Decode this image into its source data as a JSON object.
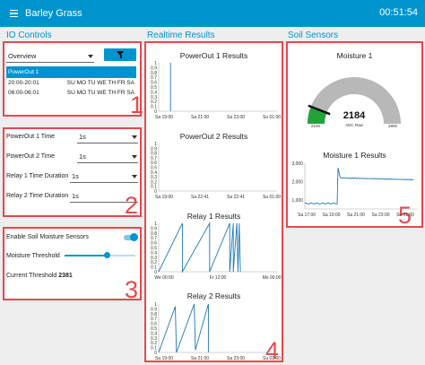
{
  "header": {
    "title": "Barley Grass",
    "clock": "00:51:54"
  },
  "groups": {
    "io": "IO Controls",
    "realtime": "Realtime Results",
    "soil": "Soil Sensors"
  },
  "io": {
    "view_select": "Overview",
    "schedules": [
      {
        "label": "PowerOut 1",
        "days": ""
      },
      {
        "label": "20:00-20:01",
        "days": "SU MO TU WE TH FR SA"
      },
      {
        "label": "06:00-06:01",
        "days": "SU MO TU WE TH FR SA"
      }
    ],
    "times": [
      {
        "label": "PowerOut 1 Time",
        "value": "1s"
      },
      {
        "label": "PowerOut 2 Time",
        "value": "1s"
      },
      {
        "label": "Relay 1 Time Duration",
        "value": "1s"
      },
      {
        "label": "Relay 2 Time Duration",
        "value": "1s"
      }
    ],
    "moisture": {
      "enable_label": "Enable Soil Moisture Sensors",
      "enabled": true,
      "threshold_label": "Moisture Threshold",
      "threshold_fraction": 0.6,
      "current_label": "Current Threshold",
      "current_value": "2381"
    }
  },
  "callouts": [
    "1",
    "2",
    "3",
    "4",
    "5"
  ],
  "accent": "#0094ce",
  "callout_color": "#e6484d",
  "chart_data": [
    {
      "type": "line",
      "title": "PowerOut 1 Results",
      "y_ticks": [
        "0",
        "1"
      ],
      "x_ticks": [
        "Sa 19:00",
        "Sa 21:00",
        "Sa 23:00",
        "Su 01:00"
      ],
      "series": [
        {
          "x": [
            0.1,
            0.1,
            0.1
          ],
          "y": [
            0,
            1,
            0
          ]
        }
      ]
    },
    {
      "type": "line",
      "title": "PowerOut 2 Results",
      "y_ticks": [
        "0",
        "1"
      ],
      "x_ticks": [
        "Sa 19:00",
        "Sa 22:41",
        "Sa 22:41",
        "Su 01:00"
      ],
      "series": []
    },
    {
      "type": "line",
      "title": "Relay 1 Results",
      "y_ticks": [
        "0",
        "1"
      ],
      "x_ticks": [
        "We 00:00",
        "Fr 12:00",
        "Mo 00:00"
      ],
      "series": [
        {
          "x": [
            0,
            0.2,
            0.2,
            0.43,
            0.43,
            0.6,
            0.6,
            0.63,
            0.63,
            0.66,
            0.67,
            0.68,
            0.69
          ],
          "y": [
            0,
            1,
            0,
            1,
            0,
            1,
            0,
            1,
            0,
            1,
            0,
            1,
            0
          ]
        }
      ]
    },
    {
      "type": "line",
      "title": "Relay 2 Results",
      "y_ticks": [
        "0",
        "1"
      ],
      "x_ticks": [
        "Sa 19:00",
        "Sa 21:00",
        "Sa 23:00",
        "Su 01:00"
      ],
      "series": [
        {
          "x": [
            0,
            0.14,
            0.15,
            0.3,
            0.31,
            0.42,
            0.42
          ],
          "y": [
            0,
            0.95,
            0,
            1,
            0.05,
            1,
            0
          ]
        }
      ]
    },
    {
      "type": "gauge",
      "title": "Moisture 1",
      "value": 2184,
      "units": "ADC Raw",
      "min_label": "2100",
      "max_label": "2800",
      "min": 2100,
      "max": 2800
    },
    {
      "type": "line",
      "title": "Moisture 1 Results",
      "y_ticks": [
        "1,000",
        "2,000",
        "3,000"
      ],
      "x_ticks": [
        "Sa 17:00",
        "Sa 19:00",
        "Sa 21:00",
        "Sa 23:00",
        "Su 01:00"
      ],
      "ylim": [
        500,
        3000
      ]
    }
  ]
}
